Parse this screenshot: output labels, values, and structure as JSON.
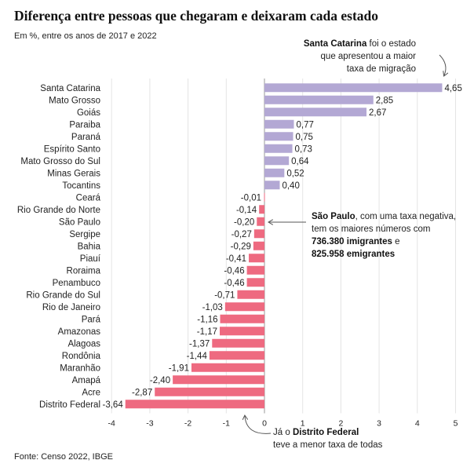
{
  "title": "Diferença entre pessoas que chegaram e deixaram cada estado",
  "subtitle": "Em %, entre os anos de 2017 e 2022",
  "source": "Fonte: Censo 2022, IBGE",
  "colors": {
    "positive": "#b3a8d4",
    "negative": "#ee6a80",
    "axis": "#999999",
    "grid": "#e4e4e4"
  },
  "annotations": {
    "top": {
      "bold": "Santa Catarina",
      "line1_rest": " foi o estado",
      "line2": "que apresentou a maior",
      "line3": "taxa de migração"
    },
    "middle": {
      "bold": "São Paulo",
      "line1_rest": ", com uma taxa negativa,",
      "line2": "tem os maiores números com",
      "line3_bold": "736.380 imigrantes",
      "line3_rest": " e",
      "line4_bold": "825.958 emigrantes"
    },
    "bottom": {
      "line1_start": "Já o ",
      "line1_bold": "Distrito Federal",
      "line2": "teve a menor taxa de todas"
    }
  },
  "chart_data": {
    "type": "bar",
    "orientation": "horizontal",
    "categories": [
      "Santa Catarina",
      "Mato Grosso",
      "Goiás",
      "Paraiba",
      "Paraná",
      "Espírito Santo",
      "Mato Grosso do Sul",
      "Minas Gerais",
      "Tocantins",
      "Ceará",
      "Rio Grande do Norte",
      "São Paulo",
      "Sergipe",
      "Bahia",
      "Piauí",
      "Roraima",
      "Penambuco",
      "Rio Grande do Sul",
      "Rio de Janeiro",
      "Pará",
      "Amazonas",
      "Alagoas",
      "Rondônia",
      "Maranhão",
      "Amapá",
      "Acre",
      "Distrito Federal"
    ],
    "values": [
      4.65,
      2.85,
      2.67,
      0.77,
      0.75,
      0.73,
      0.64,
      0.52,
      0.4,
      -0.01,
      -0.14,
      -0.2,
      -0.27,
      -0.29,
      -0.41,
      -0.46,
      -0.46,
      -0.71,
      -1.03,
      -1.16,
      -1.17,
      -1.37,
      -1.44,
      -1.91,
      -2.4,
      -2.87,
      -3.64
    ],
    "value_labels": [
      "4,65",
      "2,85",
      "2,67",
      "0,77",
      "0,75",
      "0,73",
      "0,64",
      "0,52",
      "0,40",
      "-0,01",
      "-0,14",
      "-0,20",
      "-0,27",
      "-0,29",
      "-0,41",
      "-0,46",
      "-0,46",
      "-0,71",
      "-1,03",
      "-1,16",
      "-1,17",
      "-1,37",
      "-1,44",
      "-1,91",
      "-2,40",
      "-2,87",
      "-3,64"
    ],
    "xlim": [
      -4,
      5
    ],
    "xticks": [
      -4,
      -3,
      -2,
      -1,
      0,
      1,
      2,
      3,
      4,
      5
    ],
    "xtick_labels": [
      "-4",
      "-3",
      "-2",
      "-1",
      "0",
      "1",
      "2",
      "3",
      "4",
      "5"
    ],
    "grid": true,
    "legend": "none"
  }
}
